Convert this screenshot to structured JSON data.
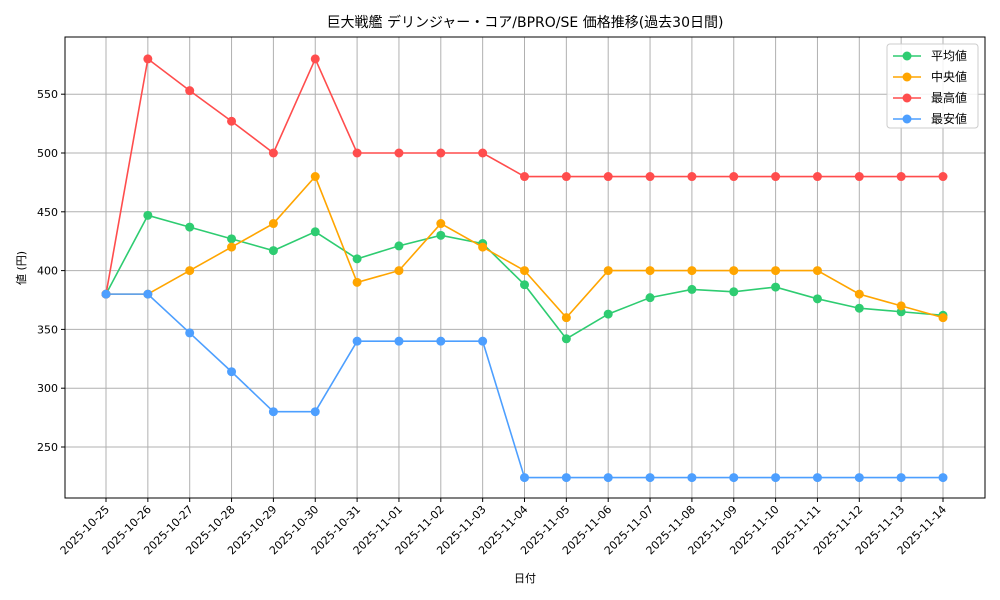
{
  "chart_data": {
    "type": "line",
    "title": "巨大戦艦 デリンジャー・コア/BPRO/SE 価格推移(過去30日間)",
    "xlabel": "日付",
    "ylabel": "値 (円)",
    "ylim": [
      207,
      597
    ],
    "yticks": [
      250,
      300,
      350,
      400,
      450,
      500,
      550
    ],
    "grid": true,
    "legend_position": "upper right",
    "x": [
      "2025-10-25",
      "2025-10-26",
      "2025-10-27",
      "2025-10-28",
      "2025-10-29",
      "2025-10-30",
      "2025-10-31",
      "2025-11-01",
      "2025-11-02",
      "2025-11-03",
      "2025-11-04",
      "2025-11-05",
      "2025-11-06",
      "2025-11-07",
      "2025-11-08",
      "2025-11-09",
      "2025-11-10",
      "2025-11-11",
      "2025-11-12",
      "2025-11-13",
      "2025-11-14"
    ],
    "series": [
      {
        "name": "平均値",
        "color": "#2ecc71",
        "values": [
          380,
          447,
          437,
          427,
          417,
          433,
          410,
          421,
          430,
          423,
          388,
          342,
          363,
          377,
          384,
          382,
          386,
          376,
          368,
          365,
          362
        ]
      },
      {
        "name": "中央値",
        "color": "#ffa500",
        "values": [
          380,
          380,
          400,
          420,
          440,
          480,
          390,
          400,
          440,
          420,
          400,
          360,
          400,
          400,
          400,
          400,
          400,
          400,
          380,
          370,
          360
        ]
      },
      {
        "name": "最高値",
        "color": "#ff4d4d",
        "values": [
          380,
          580,
          553,
          527,
          500,
          580,
          500,
          500,
          500,
          500,
          480,
          480,
          480,
          480,
          480,
          480,
          480,
          480,
          480,
          480,
          480
        ]
      },
      {
        "name": "最安値",
        "color": "#4d9fff",
        "values": [
          380,
          380,
          347,
          314,
          280,
          280,
          340,
          340,
          340,
          340,
          224,
          224,
          224,
          224,
          224,
          224,
          224,
          224,
          224,
          224,
          224
        ]
      }
    ]
  }
}
